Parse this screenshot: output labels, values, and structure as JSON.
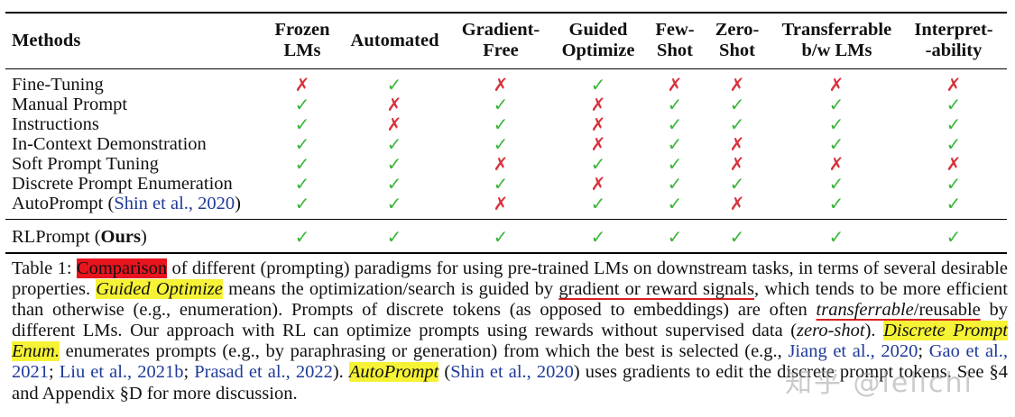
{
  "table": {
    "headers": [
      {
        "line1": "Methods",
        "line2": ""
      },
      {
        "line1": "Frozen",
        "line2": "LMs"
      },
      {
        "line1": "Automated",
        "line2": ""
      },
      {
        "line1": "Gradient-",
        "line2": "Free"
      },
      {
        "line1": "Guided",
        "line2": "Optimize"
      },
      {
        "line1": "Few-",
        "line2": "Shot"
      },
      {
        "line1": "Zero-",
        "line2": "Shot"
      },
      {
        "line1": "Transferrable",
        "line2": "b/w LMs"
      },
      {
        "line1": "Interpret-",
        "line2": "-ability"
      }
    ],
    "rows": [
      {
        "name": "Fine-Tuning",
        "cite": "",
        "cite_tail": "",
        "marks": [
          "✗",
          "✓",
          "✗",
          "✓",
          "✗",
          "✗",
          "✗",
          "✗"
        ]
      },
      {
        "name": "Manual Prompt",
        "cite": "",
        "cite_tail": "",
        "marks": [
          "✓",
          "✗",
          "✓",
          "✗",
          "✓",
          "✓",
          "✓",
          "✓"
        ]
      },
      {
        "name": "Instructions",
        "cite": "",
        "cite_tail": "",
        "marks": [
          "✓",
          "✗",
          "✓",
          "✗",
          "✓",
          "✓",
          "✓",
          "✓"
        ]
      },
      {
        "name": "In-Context Demonstration",
        "cite": "",
        "cite_tail": "",
        "marks": [
          "✓",
          "✓",
          "✓",
          "✗",
          "✓",
          "✗",
          "✓",
          "✓"
        ]
      },
      {
        "name": "Soft Prompt Tuning",
        "cite": "",
        "cite_tail": "",
        "marks": [
          "✓",
          "✓",
          "✗",
          "✓",
          "✓",
          "✗",
          "✗",
          "✗"
        ]
      },
      {
        "name": "Discrete Prompt Enumeration",
        "cite": "",
        "cite_tail": "",
        "marks": [
          "✓",
          "✓",
          "✓",
          "✗",
          "✓",
          "✓",
          "✓",
          "✓"
        ]
      },
      {
        "name": "AutoPrompt (",
        "cite": "Shin et al., 2020",
        "cite_tail": ")",
        "marks": [
          "✓",
          "✓",
          "✗",
          "✓",
          "✓",
          "✗",
          "✓",
          "✓"
        ]
      }
    ],
    "ours": {
      "name": "RLPrompt (",
      "bold": "Ours",
      "tail": ")",
      "marks": [
        "✓",
        "✓",
        "✓",
        "✓",
        "✓",
        "✓",
        "✓",
        "✓"
      ]
    }
  },
  "caption": {
    "label": "Table 1: ",
    "hl_comparison": "Comparison",
    "t1": " of different (prompting) paradigms for using pre-trained LMs on downstream tasks, in terms of several desirable properties. ",
    "hl_guided": "Guided Optimize",
    "t2": " means the optimization/search is guided by ",
    "ul_signals": "gradient or reward signals",
    "t3": ", which tends to be more efficient than otherwise (e.g., enumeration). Prompts of discrete tokens (as opposed to embeddings) are often ",
    "ul_transfer_it": "transferrable",
    "ul_transfer_rest": "/reusable",
    "t4": " by different LMs. Our approach with RL can optimize prompts using rewards without supervised data (",
    "it_zero": "zero-shot",
    "t5": "). ",
    "hl_enum": "Discrete Prompt Enum.",
    "t6": " enumerates prompts (e.g., by paraphrasing or generation) from which the best is selected (e.g., ",
    "c1": "Jiang et al., 2020",
    "s1": "; ",
    "c2": "Gao et al., 2021",
    "s2": "; ",
    "c3": "Liu et al., 2021b",
    "s3": "; ",
    "c4": "Prasad et al., 2022",
    "t7": "). ",
    "hl_auto": "AutoPrompt",
    "t8": " (",
    "c5": "Shin et al., 2020",
    "t9": ") uses gradients to edit the discrete prompt tokens. See §4 and Appendix §D for more discussion."
  },
  "watermark": "知乎 @lelichi",
  "colors": {
    "check": "#3bb53b",
    "cross": "#d8323c",
    "cite": "#1f3a99",
    "highlight_yellow": "#f6f336",
    "highlight_red": "#e8141e"
  }
}
